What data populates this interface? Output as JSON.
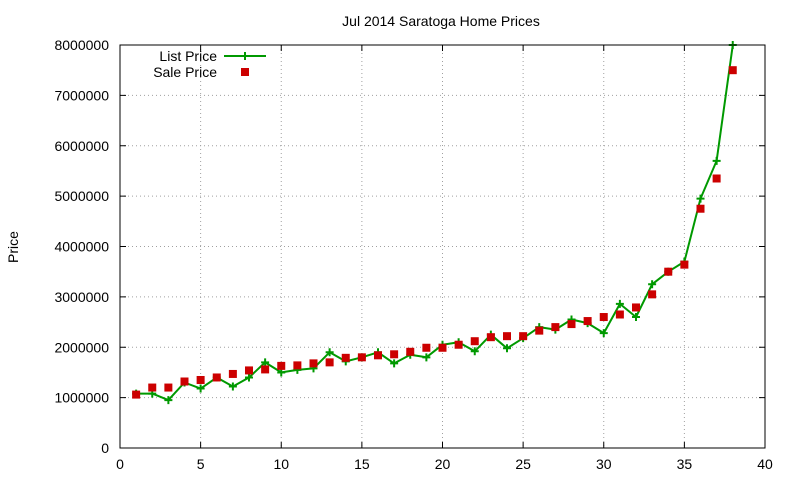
{
  "chart_data": {
    "type": "line",
    "title": "Jul 2014 Saratoga Home Prices",
    "xlabel": "",
    "ylabel": "Price",
    "xlim": [
      0,
      40
    ],
    "ylim": [
      0,
      8000000
    ],
    "x_ticks": [
      "0",
      "5",
      "10",
      "15",
      "20",
      "25",
      "30",
      "35",
      "40"
    ],
    "y_ticks": [
      "0",
      "1000000",
      "2000000",
      "3000000",
      "4000000",
      "5000000",
      "6000000",
      "7000000",
      "8000000"
    ],
    "grid": true,
    "legend_position": "top-left",
    "series": [
      {
        "name": "List Price",
        "style": "line+cross",
        "color": "#009900",
        "points": [
          [
            1,
            1080000
          ],
          [
            2,
            1080000
          ],
          [
            3,
            950000
          ],
          [
            4,
            1300000
          ],
          [
            5,
            1180000
          ],
          [
            6,
            1400000
          ],
          [
            7,
            1220000
          ],
          [
            8,
            1400000
          ],
          [
            9,
            1700000
          ],
          [
            10,
            1500000
          ],
          [
            11,
            1550000
          ],
          [
            12,
            1580000
          ],
          [
            13,
            1900000
          ],
          [
            14,
            1720000
          ],
          [
            15,
            1800000
          ],
          [
            16,
            1900000
          ],
          [
            17,
            1680000
          ],
          [
            18,
            1850000
          ],
          [
            19,
            1800000
          ],
          [
            20,
            2050000
          ],
          [
            21,
            2100000
          ],
          [
            22,
            1920000
          ],
          [
            23,
            2250000
          ],
          [
            24,
            1980000
          ],
          [
            25,
            2180000
          ],
          [
            26,
            2400000
          ],
          [
            27,
            2350000
          ],
          [
            28,
            2550000
          ],
          [
            29,
            2480000
          ],
          [
            30,
            2280000
          ],
          [
            31,
            2860000
          ],
          [
            32,
            2600000
          ],
          [
            33,
            3250000
          ],
          [
            34,
            3500000
          ],
          [
            35,
            3700000
          ],
          [
            36,
            4950000
          ],
          [
            37,
            5700000
          ],
          [
            38,
            8000000
          ]
        ]
      },
      {
        "name": "Sale Price",
        "style": "square",
        "color": "#cc0000",
        "points": [
          [
            1,
            1060000
          ],
          [
            2,
            1200000
          ],
          [
            3,
            1200000
          ],
          [
            4,
            1320000
          ],
          [
            5,
            1350000
          ],
          [
            6,
            1400000
          ],
          [
            7,
            1470000
          ],
          [
            8,
            1540000
          ],
          [
            9,
            1560000
          ],
          [
            10,
            1630000
          ],
          [
            11,
            1640000
          ],
          [
            12,
            1680000
          ],
          [
            13,
            1700000
          ],
          [
            14,
            1790000
          ],
          [
            15,
            1800000
          ],
          [
            16,
            1840000
          ],
          [
            17,
            1860000
          ],
          [
            18,
            1910000
          ],
          [
            19,
            1990000
          ],
          [
            20,
            1990000
          ],
          [
            21,
            2050000
          ],
          [
            22,
            2120000
          ],
          [
            23,
            2200000
          ],
          [
            24,
            2220000
          ],
          [
            25,
            2220000
          ],
          [
            26,
            2330000
          ],
          [
            27,
            2400000
          ],
          [
            28,
            2460000
          ],
          [
            29,
            2520000
          ],
          [
            30,
            2600000
          ],
          [
            31,
            2650000
          ],
          [
            32,
            2790000
          ],
          [
            33,
            3050000
          ],
          [
            34,
            3500000
          ],
          [
            35,
            3640000
          ],
          [
            36,
            4750000
          ],
          [
            37,
            5350000
          ],
          [
            38,
            7500000
          ]
        ]
      }
    ]
  }
}
